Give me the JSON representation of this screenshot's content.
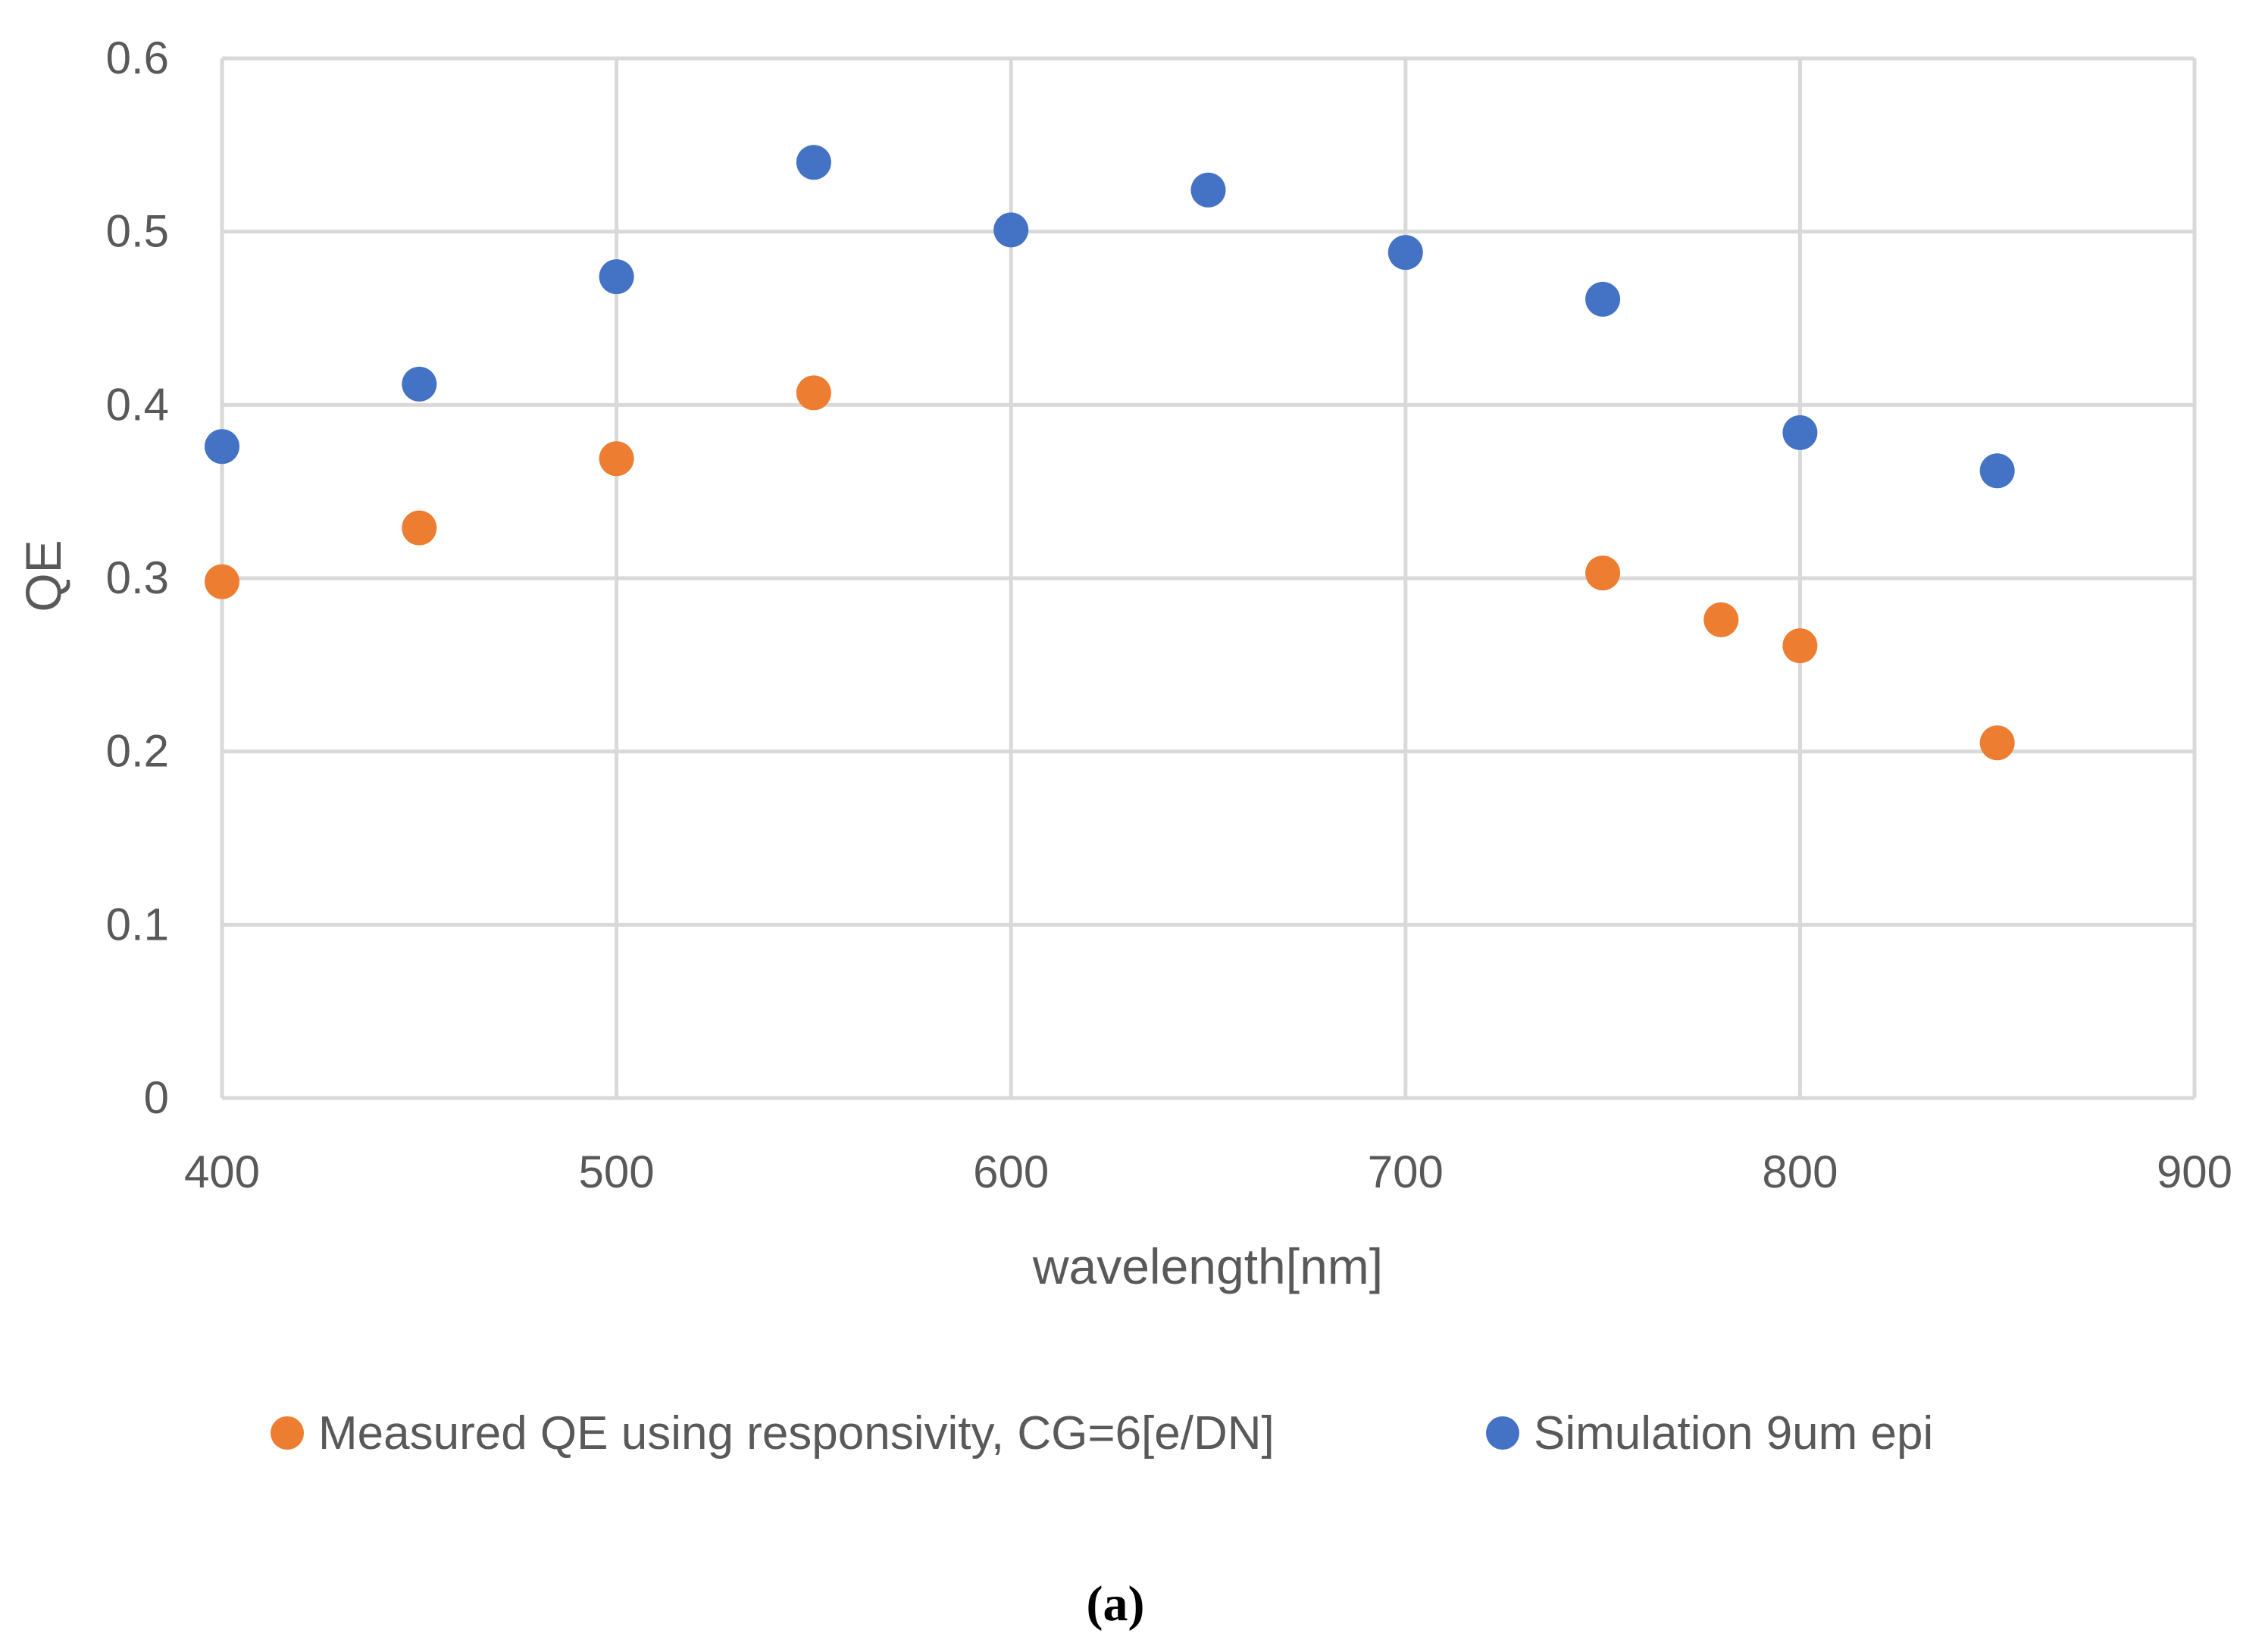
{
  "chart_data": {
    "type": "scatter",
    "title": "",
    "xlabel": "wavelength[nm]",
    "ylabel": "QE",
    "xlim": [
      400,
      900
    ],
    "ylim": [
      0,
      0.6
    ],
    "xticks": [
      400,
      500,
      600,
      700,
      800,
      900
    ],
    "yticks": [
      0,
      0.1,
      0.2,
      0.3,
      0.4,
      0.5,
      0.6
    ],
    "xtick_labels": [
      "400",
      "500",
      "600",
      "700",
      "800",
      "900"
    ],
    "ytick_labels": [
      "0",
      "0.1",
      "0.2",
      "0.3",
      "0.4",
      "0.5",
      "0.6"
    ],
    "grid": true,
    "legend_position": "bottom",
    "series": [
      {
        "name": "Measured QE using responsivity, CG=6[e/DN]",
        "color": "#ED7D31",
        "x": [
          400,
          450,
          500,
          550,
          750,
          780,
          800,
          850
        ],
        "y": [
          0.298,
          0.329,
          0.369,
          0.407,
          0.303,
          0.276,
          0.261,
          0.205
        ]
      },
      {
        "name": "Simulation 9um epi",
        "color": "#4472C4",
        "x": [
          400,
          450,
          500,
          550,
          600,
          650,
          700,
          750,
          800,
          850
        ],
        "y": [
          0.376,
          0.412,
          0.474,
          0.54,
          0.501,
          0.524,
          0.488,
          0.461,
          0.384,
          0.362
        ]
      }
    ]
  },
  "caption": "(a)",
  "colors": {
    "grid": "#D9D9D9",
    "text": "#595959",
    "background": "#FFFFFF"
  }
}
